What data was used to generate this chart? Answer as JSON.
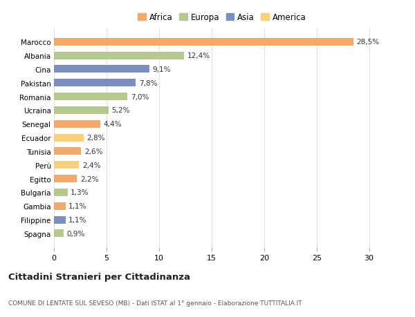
{
  "countries": [
    "Marocco",
    "Albania",
    "Cina",
    "Pakistan",
    "Romania",
    "Ucraina",
    "Senegal",
    "Ecuador",
    "Tunisia",
    "Perù",
    "Egitto",
    "Bulgaria",
    "Gambia",
    "Filippine",
    "Spagna"
  ],
  "values": [
    28.5,
    12.4,
    9.1,
    7.8,
    7.0,
    5.2,
    4.4,
    2.8,
    2.6,
    2.4,
    2.2,
    1.3,
    1.1,
    1.1,
    0.9
  ],
  "labels": [
    "28,5%",
    "12,4%",
    "9,1%",
    "7,8%",
    "7,0%",
    "5,2%",
    "4,4%",
    "2,8%",
    "2,6%",
    "2,4%",
    "2,2%",
    "1,3%",
    "1,1%",
    "1,1%",
    "0,9%"
  ],
  "continents": [
    "Africa",
    "Europa",
    "Asia",
    "Asia",
    "Europa",
    "Europa",
    "Africa",
    "America",
    "Africa",
    "America",
    "Africa",
    "Europa",
    "Africa",
    "Asia",
    "Europa"
  ],
  "colors": {
    "Africa": "#F4A96A",
    "Europa": "#B5C98E",
    "Asia": "#7B8FBE",
    "America": "#F9D07A"
  },
  "legend_colors": {
    "Africa": "#F4A96A",
    "Europa": "#B5C98E",
    "Asia": "#7B8FBE",
    "America": "#F9D07A"
  },
  "xlim": [
    0,
    32
  ],
  "xticks": [
    0,
    5,
    10,
    15,
    20,
    25,
    30
  ],
  "title": "Cittadini Stranieri per Cittadinanza",
  "subtitle": "COMUNE DI LENTATE SUL SEVESO (MB) - Dati ISTAT al 1° gennaio - Elaborazione TUTTITALIA.IT",
  "background_color": "#ffffff",
  "grid_color": "#e0e0e0"
}
